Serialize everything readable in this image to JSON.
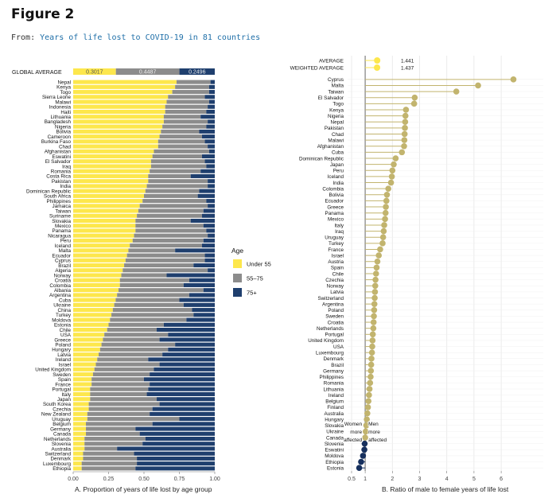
{
  "figure_title": "Figure 2",
  "from_prefix": "From:",
  "from_link": "Years of life lost to COVID-19 in 81 countries",
  "chart_data": [
    {
      "type": "bar",
      "stacked": true,
      "orientation": "horizontal",
      "caption": "A.  Proportion of years of life lost by age group",
      "global_average_label": "GLOBAL AVERAGE",
      "global_average": [
        0.3017,
        0.4487,
        0.2496
      ],
      "global_average_text": [
        "0.3017",
        "0.4487",
        "0.2496"
      ],
      "legend_title": "Age",
      "legend_position": "right",
      "series_names": [
        "Under 55",
        "55–75",
        "75+"
      ],
      "colors": {
        "under55": "#fde74c",
        "mid": "#8c8c8c",
        "old": "#1f3f6e"
      },
      "xlim": [
        0,
        1
      ],
      "x_ticks": [
        0,
        0.25,
        0.5,
        0.75,
        1
      ],
      "x_tick_labels": [
        "0.00",
        "0.25",
        "0.50",
        "0.75",
        "1.00"
      ],
      "countries": [
        "Nepal",
        "Kenya",
        "Togo",
        "Sierra Leone",
        "Malawi",
        "Indonesia",
        "Haiti",
        "Lithuania",
        "Bangladesh",
        "Nigeria",
        "Bolivia",
        "Cameroon",
        "Burkina Faso",
        "Chad",
        "Afghanistan",
        "Eswatini",
        "El Salvador",
        "Iraq",
        "Romania",
        "Costa Rica",
        "Pakistan",
        "India",
        "Dominican Republic",
        "South Africa",
        "Philippines",
        "Jamaica",
        "Taiwan",
        "Suriname",
        "Slovakia",
        "Mexico",
        "Panama",
        "Nicaragua",
        "Peru",
        "Iceland",
        "Malta",
        "Ecuador",
        "Cyprus",
        "Brazil",
        "Algeria",
        "Norway",
        "Croatia",
        "Colombia",
        "Albania",
        "Argentina",
        "Cuba",
        "Ukraine",
        "China",
        "Turkey",
        "Moldova",
        "Estonia",
        "Chile",
        "USA",
        "Greece",
        "Poland",
        "Hungary",
        "Latvia",
        "Ireland",
        "Israel",
        "United Kingdom",
        "Sweden",
        "Spain",
        "France",
        "Portugal",
        "Italy",
        "Japan",
        "South Korea",
        "Czechia",
        "New Zealand",
        "Uruguay",
        "Belgium",
        "Germany",
        "Canada",
        "Netherlands",
        "Slovenia",
        "Australia",
        "Switzerland",
        "Denmark",
        "Luxembourg",
        "Ethiopia"
      ],
      "under55": [
        0.73,
        0.72,
        0.7,
        0.67,
        0.66,
        0.65,
        0.65,
        0.64,
        0.64,
        0.63,
        0.62,
        0.61,
        0.6,
        0.6,
        0.57,
        0.56,
        0.55,
        0.55,
        0.54,
        0.53,
        0.53,
        0.52,
        0.51,
        0.5,
        0.49,
        0.47,
        0.46,
        0.45,
        0.44,
        0.44,
        0.44,
        0.43,
        0.42,
        0.4,
        0.39,
        0.38,
        0.37,
        0.36,
        0.35,
        0.34,
        0.33,
        0.33,
        0.32,
        0.31,
        0.3,
        0.29,
        0.28,
        0.27,
        0.26,
        0.25,
        0.24,
        0.22,
        0.21,
        0.2,
        0.19,
        0.18,
        0.17,
        0.16,
        0.15,
        0.14,
        0.13,
        0.13,
        0.12,
        0.12,
        0.12,
        0.11,
        0.11,
        0.1,
        0.1,
        0.09,
        0.09,
        0.09,
        0.08,
        0.08,
        0.08,
        0.07,
        0.07,
        0.06,
        0.06
      ],
      "mid": [
        0.24,
        0.24,
        0.26,
        0.26,
        0.3,
        0.3,
        0.29,
        0.26,
        0.31,
        0.31,
        0.27,
        0.3,
        0.33,
        0.35,
        0.39,
        0.35,
        0.38,
        0.39,
        0.36,
        0.3,
        0.42,
        0.43,
        0.38,
        0.38,
        0.45,
        0.48,
        0.46,
        0.46,
        0.39,
        0.48,
        0.5,
        0.52,
        0.5,
        0.51,
        0.33,
        0.55,
        0.56,
        0.49,
        0.6,
        0.32,
        0.49,
        0.45,
        0.6,
        0.51,
        0.45,
        0.49,
        0.56,
        0.58,
        0.54,
        0.39,
        0.35,
        0.45,
        0.4,
        0.52,
        0.48,
        0.45,
        0.36,
        0.45,
        0.42,
        0.4,
        0.37,
        0.41,
        0.41,
        0.4,
        0.47,
        0.5,
        0.45,
        0.44,
        0.65,
        0.47,
        0.35,
        0.38,
        0.43,
        0.41,
        0.23,
        0.36,
        0.38,
        0.39,
        0.38
      ],
      "old": [
        0.03,
        0.04,
        0.04,
        0.07,
        0.04,
        0.05,
        0.06,
        0.1,
        0.05,
        0.06,
        0.11,
        0.09,
        0.07,
        0.05,
        0.04,
        0.09,
        0.07,
        0.06,
        0.1,
        0.17,
        0.05,
        0.05,
        0.11,
        0.12,
        0.06,
        0.05,
        0.08,
        0.09,
        0.17,
        0.08,
        0.06,
        0.05,
        0.08,
        0.09,
        0.28,
        0.07,
        0.07,
        0.15,
        0.05,
        0.34,
        0.18,
        0.22,
        0.08,
        0.18,
        0.25,
        0.22,
        0.16,
        0.15,
        0.2,
        0.36,
        0.41,
        0.33,
        0.39,
        0.28,
        0.33,
        0.37,
        0.47,
        0.39,
        0.43,
        0.46,
        0.5,
        0.46,
        0.47,
        0.48,
        0.41,
        0.39,
        0.44,
        0.46,
        0.25,
        0.44,
        0.56,
        0.53,
        0.49,
        0.51,
        0.69,
        0.57,
        0.55,
        0.55,
        0.56
      ]
    },
    {
      "type": "scatter",
      "style": "lollipop",
      "caption": "B.  Ratio of male to female years of life lost",
      "average_label": "AVERAGE",
      "average_value": 1.441,
      "average_text": "1.441",
      "weighted_average_label": "WEIGHTED AVERAGE",
      "weighted_average_value": 1.437,
      "weighted_average_text": "1.437",
      "xlim": [
        0.5,
        6.7
      ],
      "reference_x": 1,
      "x_ticks": [
        0.5,
        1,
        2,
        3,
        4,
        5,
        6
      ],
      "x_tick_labels": [
        "0.5",
        "1",
        "2",
        "3",
        "4",
        "5",
        "6"
      ],
      "annotation_women": [
        "Women",
        "more",
        "affected"
      ],
      "annotation_men": [
        "Men",
        "more",
        "affected"
      ],
      "colors": {
        "men": "#c2b46e",
        "women": "#17305e",
        "average": "#fde74c",
        "grid": "#e6e6e6",
        "refline": "#888888"
      },
      "countries": [
        "Cyprus",
        "Malta",
        "Taiwan",
        "El Salvador",
        "Togo",
        "Kenya",
        "Nigeria",
        "Nepal",
        "Pakistan",
        "Chad",
        "Malawi",
        "Afghanistan",
        "Cuba",
        "Dominican Republic",
        "Japan",
        "Peru",
        "Iceland",
        "India",
        "Colombia",
        "Bolivia",
        "Ecuador",
        "Greece",
        "Panama",
        "Mexico",
        "Italy",
        "Iraq",
        "Uruguay",
        "Turkey",
        "France",
        "Israel",
        "Austria",
        "Spain",
        "Chile",
        "Czechia",
        "Norway",
        "Latvia",
        "Switzerland",
        "Argentina",
        "Poland",
        "Sweden",
        "Croatia",
        "Netherlands",
        "Portugal",
        "United Kingdom",
        "USA",
        "Luxembourg",
        "Denmark",
        "Brazil",
        "Germany",
        "Philippines",
        "Romania",
        "Lithuania",
        "Ireland",
        "Belgium",
        "Finland",
        "Australia",
        "Hungary",
        "Slovakia",
        "Ukraine",
        "Canada",
        "Slovenia",
        "Eswatini",
        "Moldova",
        "Ethiopia",
        "Estonia"
      ],
      "values": [
        6.45,
        5.15,
        4.35,
        2.82,
        2.8,
        2.5,
        2.48,
        2.47,
        2.46,
        2.45,
        2.44,
        2.43,
        2.35,
        2.12,
        2.05,
        2.0,
        1.98,
        1.95,
        1.85,
        1.8,
        1.78,
        1.76,
        1.75,
        1.73,
        1.7,
        1.68,
        1.66,
        1.64,
        1.55,
        1.5,
        1.45,
        1.42,
        1.4,
        1.38,
        1.37,
        1.36,
        1.35,
        1.34,
        1.33,
        1.32,
        1.31,
        1.3,
        1.28,
        1.27,
        1.26,
        1.25,
        1.23,
        1.22,
        1.21,
        1.2,
        1.18,
        1.16,
        1.14,
        1.12,
        1.1,
        1.08,
        1.06,
        1.04,
        1.02,
        1.0,
        0.98,
        0.97,
        0.92,
        0.85,
        0.78
      ]
    }
  ]
}
